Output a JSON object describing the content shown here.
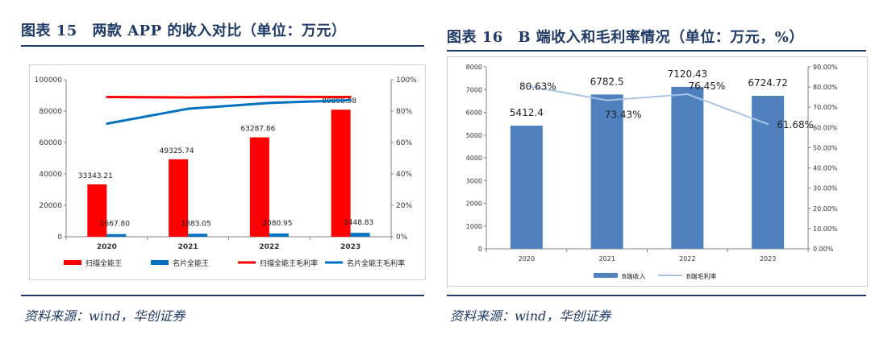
{
  "charts": [
    {
      "figure_title": "图表 15　两款 APP 的收入对比（单位：万元）",
      "source": "资料来源：wind，华创证券"
    },
    {
      "figure_title": "图表 16　B 端收入和毛利率情况（单位：万元，%）",
      "source": "资料来源：wind，华创证券"
    }
  ],
  "chart_data": [
    {
      "type": "bar",
      "categories": [
        "2020",
        "2021",
        "2022",
        "2023"
      ],
      "series": [
        {
          "name": "扫描全能王",
          "kind": "bar",
          "axis": "left",
          "color": "#ff0000",
          "values": [
            33343.21,
            49325.74,
            63287.86,
            80898.98
          ],
          "labels": [
            "33343.21",
            "49325.74",
            "63287.86",
            "80898.98"
          ]
        },
        {
          "name": "名片全能王",
          "kind": "bar",
          "axis": "left",
          "color": "#0070c0",
          "values": [
            1667.8,
            1883.05,
            2080.95,
            2448.83
          ],
          "labels": [
            "1667.80",
            "1883.05",
            "2080.95",
            "2448.83"
          ]
        },
        {
          "name": "扫描全能王毛利率",
          "kind": "line",
          "axis": "right",
          "color": "#ff0000",
          "values": [
            89.0,
            88.7,
            89.1,
            89.0
          ]
        },
        {
          "name": "名片全能王毛利率",
          "kind": "line",
          "axis": "right",
          "color": "#0070c0",
          "values": [
            72.0,
            81.5,
            85.2,
            87.0
          ]
        }
      ],
      "ylim": [
        0,
        100000
      ],
      "yticks": [
        "0",
        "20000",
        "40000",
        "60000",
        "80000",
        "100000"
      ],
      "y2lim": [
        0,
        100
      ],
      "y2ticks": [
        "0%",
        "20%",
        "40%",
        "60%",
        "80%",
        "100%"
      ],
      "legend_position": "bottom"
    },
    {
      "type": "bar",
      "categories": [
        "2020",
        "2021",
        "2022",
        "2023"
      ],
      "series": [
        {
          "name": "B端收入",
          "kind": "bar",
          "axis": "left",
          "color": "#4e81bd",
          "values": [
            5412.4,
            6782.5,
            7120.43,
            6724.72
          ],
          "labels": [
            "5412.4",
            "6782.5",
            "7120.43",
            "6724.72"
          ]
        },
        {
          "name": "B端毛利率",
          "kind": "line",
          "axis": "right",
          "color": "#a9c4e4",
          "values": [
            80.63,
            73.43,
            76.45,
            61.68
          ],
          "labels": [
            "80.63%",
            "73.43%",
            "76.45%",
            "61.68%"
          ]
        }
      ],
      "ylim": [
        0,
        8000
      ],
      "yticks": [
        "0",
        "1000",
        "2000",
        "3000",
        "4000",
        "5000",
        "6000",
        "7000",
        "8000"
      ],
      "y2lim": [
        0,
        90
      ],
      "y2ticks": [
        "0.00%",
        "10.00%",
        "20.00%",
        "30.00%",
        "40.00%",
        "50.00%",
        "60.00%",
        "70.00%",
        "80.00%",
        "90.00%"
      ],
      "legend_position": "bottom"
    }
  ]
}
